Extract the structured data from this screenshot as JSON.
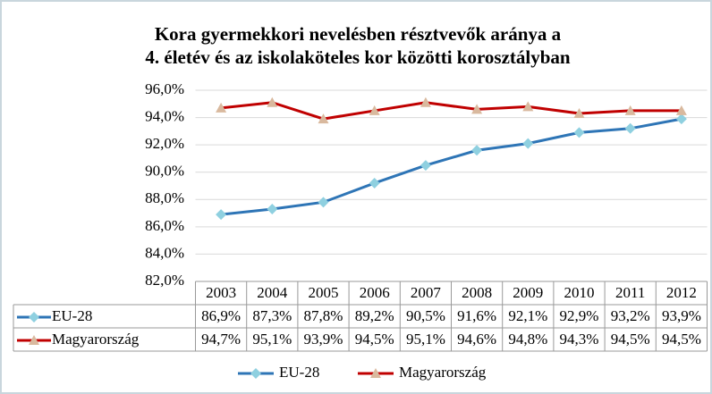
{
  "chart_data": {
    "type": "line",
    "title": [
      "Kora gyermekkori nevelésben résztvevők aránya a",
      "4. életév és az iskolaköteles kor közötti korosztályban"
    ],
    "categories": [
      "2003",
      "2004",
      "2005",
      "2006",
      "2007",
      "2008",
      "2009",
      "2010",
      "2011",
      "2012"
    ],
    "series": [
      {
        "name": "EU-28",
        "color": "#2e75b6",
        "marker_color": "#8fd0e0",
        "marker": "diamond",
        "values": [
          86.9,
          87.3,
          87.8,
          89.2,
          90.5,
          91.6,
          92.1,
          92.9,
          93.2,
          93.9
        ],
        "value_labels": [
          "86,9%",
          "87,3%",
          "87,8%",
          "89,2%",
          "90,5%",
          "91,6%",
          "92,1%",
          "92,9%",
          "93,2%",
          "93,9%"
        ]
      },
      {
        "name": "Magyarország",
        "color": "#c00000",
        "marker_color": "#d9b99e",
        "marker": "triangle",
        "values": [
          94.7,
          95.1,
          93.9,
          94.5,
          95.1,
          94.6,
          94.8,
          94.3,
          94.5,
          94.5
        ],
        "value_labels": [
          "94,7%",
          "95,1%",
          "93,9%",
          "94,5%",
          "95,1%",
          "94,6%",
          "94,8%",
          "94,3%",
          "94,5%",
          "94,5%"
        ]
      }
    ],
    "ylim": [
      82,
      96
    ],
    "yticks": [
      {
        "value": 82,
        "label": "82,0%"
      },
      {
        "value": 84,
        "label": "84,0%"
      },
      {
        "value": 86,
        "label": "86,0%"
      },
      {
        "value": 88,
        "label": "88,0%"
      },
      {
        "value": 90,
        "label": "90,0%"
      },
      {
        "value": 92,
        "label": "92,0%"
      },
      {
        "value": 94,
        "label": "94,0%"
      },
      {
        "value": 96,
        "label": "96,0%"
      }
    ],
    "grid": true,
    "legend": "bottom"
  }
}
